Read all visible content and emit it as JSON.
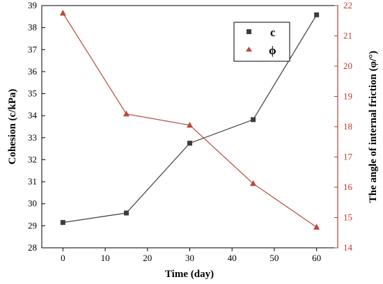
{
  "chart_data": {
    "type": "line",
    "x": [
      0,
      15,
      30,
      45,
      60
    ],
    "xlabel": "Time (day)",
    "xlim": [
      -5,
      65
    ],
    "xticks": [
      0,
      10,
      20,
      30,
      40,
      50,
      60
    ],
    "ylabel_left": "Cohesion (c/kPa)",
    "ylim_left": [
      28,
      39
    ],
    "yticks_left": [
      28,
      29,
      30,
      31,
      32,
      33,
      34,
      35,
      36,
      37,
      38,
      39
    ],
    "ylabel_right": "The angle of internal friction (φ/°)",
    "ylim_right": [
      14,
      22
    ],
    "yticks_right": [
      14,
      15,
      16,
      17,
      18,
      19,
      20,
      21,
      22
    ],
    "grid": false,
    "legend_position": "top-right",
    "series": [
      {
        "name": "c",
        "axis": "left",
        "marker": "square",
        "color": "#3d3d3d",
        "values": [
          29.15,
          29.58,
          32.75,
          33.82,
          38.58
        ]
      },
      {
        "name": "ϕ",
        "axis": "right",
        "marker": "triangle",
        "color": "#b84a3c",
        "values": [
          21.75,
          18.42,
          18.05,
          16.12,
          14.68
        ]
      }
    ],
    "colors": {
      "left_axis": "#000000",
      "right_axis": "#c0392b"
    }
  }
}
